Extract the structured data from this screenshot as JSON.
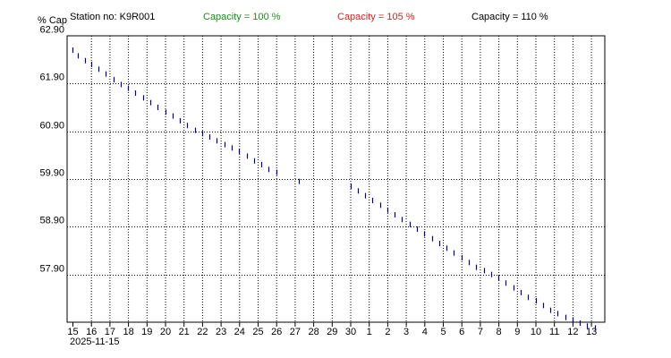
{
  "header": {
    "station": "Station no: K9R001",
    "capacities": [
      {
        "label": "Capacity = 100 %",
        "color": "#1a8c1a"
      },
      {
        "label": "Capacity = 105 %",
        "color": "#e02020"
      },
      {
        "label": "Capacity = 110 %",
        "color": "#000000"
      }
    ]
  },
  "chart_data": {
    "type": "scatter",
    "ylabel": "% Cap",
    "ylim": [
      56.9,
      62.9
    ],
    "yticks": [
      "62.90",
      "61.90",
      "60.90",
      "59.90",
      "58.90",
      "57.90"
    ],
    "x_tick_labels": [
      "15",
      "16",
      "17",
      "18",
      "19",
      "20",
      "21",
      "22",
      "23",
      "24",
      "25",
      "26",
      "27",
      "28",
      "29",
      "30",
      "1",
      "2",
      "3",
      "4",
      "5",
      "6",
      "7",
      "8",
      "9",
      "10",
      "11",
      "12",
      "13"
    ],
    "x_date_label": "2025-11-15",
    "grid": true,
    "series_color": "#00008b",
    "series": [
      {
        "values": [
          [
            0.0,
            62.6
          ],
          [
            0.3,
            62.48
          ],
          [
            0.7,
            62.38
          ],
          [
            1.0,
            62.3
          ],
          [
            1.4,
            62.2
          ],
          [
            1.8,
            62.1
          ],
          [
            2.2,
            61.98
          ],
          [
            2.6,
            61.88
          ],
          [
            3.0,
            61.8
          ],
          [
            3.4,
            61.7
          ],
          [
            3.8,
            61.6
          ],
          [
            4.2,
            61.5
          ],
          [
            4.6,
            61.4
          ],
          [
            5.0,
            61.3
          ],
          [
            5.4,
            61.22
          ],
          [
            5.8,
            61.12
          ],
          [
            6.2,
            61.02
          ],
          [
            6.6,
            60.92
          ],
          [
            7.0,
            60.85
          ],
          [
            7.4,
            60.78
          ],
          [
            7.8,
            60.7
          ],
          [
            8.2,
            60.62
          ],
          [
            8.6,
            60.55
          ],
          [
            9.0,
            60.48
          ],
          [
            9.4,
            60.38
          ],
          [
            9.8,
            60.28
          ],
          [
            10.2,
            60.2
          ],
          [
            10.6,
            60.1
          ],
          [
            11.0,
            60.04
          ],
          [
            12.2,
            59.85
          ],
          [
            15.0,
            59.75
          ],
          [
            15.4,
            59.65
          ],
          [
            15.8,
            59.55
          ],
          [
            16.2,
            59.45
          ],
          [
            16.6,
            59.35
          ],
          [
            17.0,
            59.25
          ],
          [
            17.4,
            59.15
          ],
          [
            17.8,
            59.05
          ],
          [
            18.2,
            58.95
          ],
          [
            18.6,
            58.85
          ],
          [
            19.0,
            58.75
          ],
          [
            19.4,
            58.65
          ],
          [
            19.8,
            58.55
          ],
          [
            20.2,
            58.45
          ],
          [
            20.6,
            58.35
          ],
          [
            21.0,
            58.25
          ],
          [
            21.4,
            58.15
          ],
          [
            21.8,
            58.05
          ],
          [
            22.2,
            57.98
          ],
          [
            22.6,
            57.9
          ],
          [
            23.0,
            57.82
          ],
          [
            23.4,
            57.72
          ],
          [
            23.8,
            57.62
          ],
          [
            24.2,
            57.52
          ],
          [
            24.6,
            57.42
          ],
          [
            25.0,
            57.35
          ],
          [
            25.4,
            57.25
          ],
          [
            25.8,
            57.15
          ],
          [
            26.2,
            57.08
          ],
          [
            26.6,
            57.0
          ],
          [
            27.0,
            56.95
          ],
          [
            27.4,
            56.88
          ],
          [
            27.8,
            56.82
          ],
          [
            28.2,
            56.78
          ]
        ]
      }
    ]
  }
}
